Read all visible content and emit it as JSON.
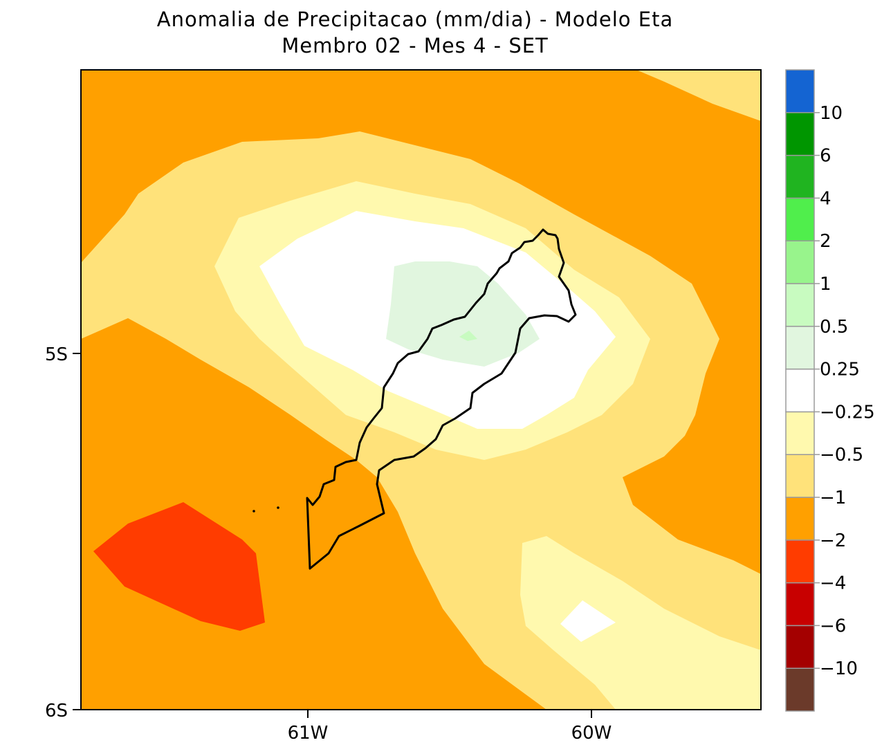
{
  "title": {
    "line1": "Anomalia de Precipitacao (mm/dia) - Modelo Eta",
    "line2": "Membro 02 - Mes 4 - SET"
  },
  "axes": {
    "y_ticks": [
      "5S",
      "6S"
    ],
    "x_ticks": [
      "61W",
      "60W"
    ]
  },
  "colorbar": {
    "levels": [
      "10",
      "6",
      "4",
      "2",
      "1",
      "0.5",
      "0.25",
      "−0.25",
      "−0.5",
      "−1",
      "−2",
      "−4",
      "−6",
      "−10"
    ],
    "colors": [
      "#6b3a2a",
      "#a40000",
      "#c80000",
      "#ff3c00",
      "#ffa000",
      "#ffe27a",
      "#fff9ae",
      "#ffffff",
      "#e1f6df",
      "#c8fbc0",
      "#98f48c",
      "#50ee4c",
      "#20b420",
      "#009600",
      "#1464d2"
    ]
  },
  "map": {
    "fill_colors": {
      "le_minus2_to_minus4": "#ff3c00",
      "minus1_to_minus2": "#ffa000",
      "minus0_5_to_minus1": "#ffe27a",
      "minus0_25_to_minus0_5": "#fff9ae",
      "neutral": "#ffffff",
      "plus0_25_to_plus0_5": "#e1f6df",
      "plus0_5_to_plus1": "#c8fbc0"
    }
  }
}
